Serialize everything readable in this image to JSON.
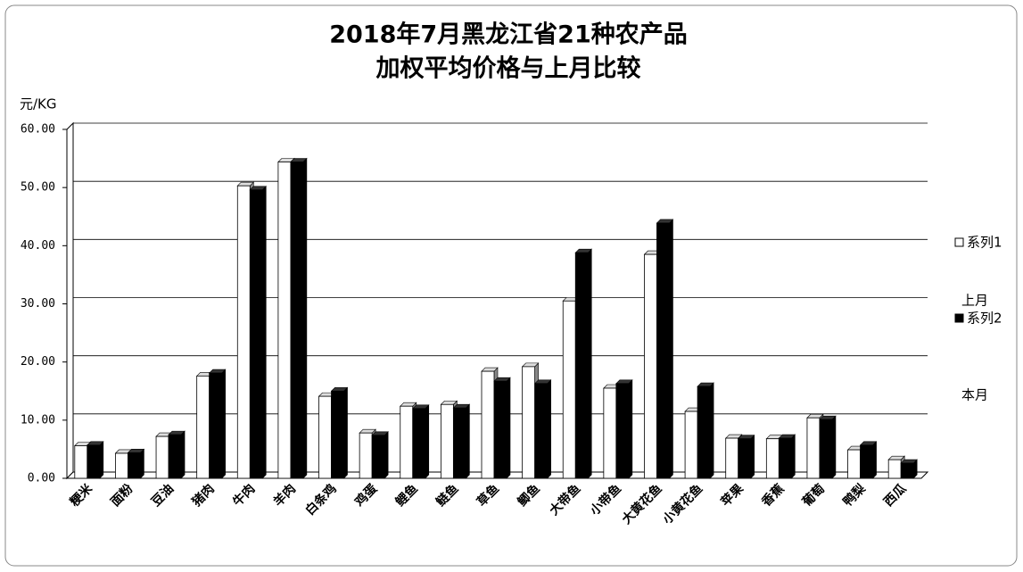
{
  "chart_data": {
    "type": "bar",
    "title_lines": [
      "2018年7月黑龙江省21种农产品",
      "加权平均价格与上月比较"
    ],
    "y_axis_label": "元/KG",
    "categories": [
      "粳米",
      "面粉",
      "豆油",
      "猪肉",
      "牛肉",
      "羊肉",
      "白条鸡",
      "鸡蛋",
      "鲤鱼",
      "鲢鱼",
      "草鱼",
      "鲫鱼",
      "大带鱼",
      "小带鱼",
      "大黄花鱼",
      "小黄花鱼",
      "苹果",
      "香蕉",
      "葡萄",
      "鸭梨",
      "西瓜"
    ],
    "series": [
      {
        "name": "系列1",
        "color": "#ffffff",
        "values": [
          5.6,
          4.3,
          7.2,
          17.6,
          50.3,
          54.4,
          14.1,
          7.8,
          12.4,
          12.7,
          18.4,
          19.2,
          30.5,
          15.5,
          38.5,
          11.5,
          6.9,
          6.8,
          10.4,
          4.9,
          3.2
        ]
      },
      {
        "name": "系列2",
        "color": "#000000",
        "values": [
          5.7,
          4.4,
          7.5,
          18.1,
          49.6,
          54.4,
          15.0,
          7.4,
          12.0,
          12.1,
          16.7,
          16.3,
          38.8,
          16.3,
          43.9,
          15.8,
          6.8,
          6.9,
          10.1,
          5.7,
          2.6
        ]
      }
    ],
    "annotations": [
      "上月",
      "本月"
    ],
    "ylim": [
      0,
      60
    ],
    "yticks": [
      {
        "value": 0,
        "label": "0.00"
      },
      {
        "value": 10,
        "label": "10.00"
      },
      {
        "value": 20,
        "label": "20.00"
      },
      {
        "value": 30,
        "label": "30.00"
      },
      {
        "value": 40,
        "label": "40.00"
      },
      {
        "value": 50,
        "label": "50.00"
      },
      {
        "value": 60,
        "label": "60.00"
      }
    ],
    "grid": true
  }
}
